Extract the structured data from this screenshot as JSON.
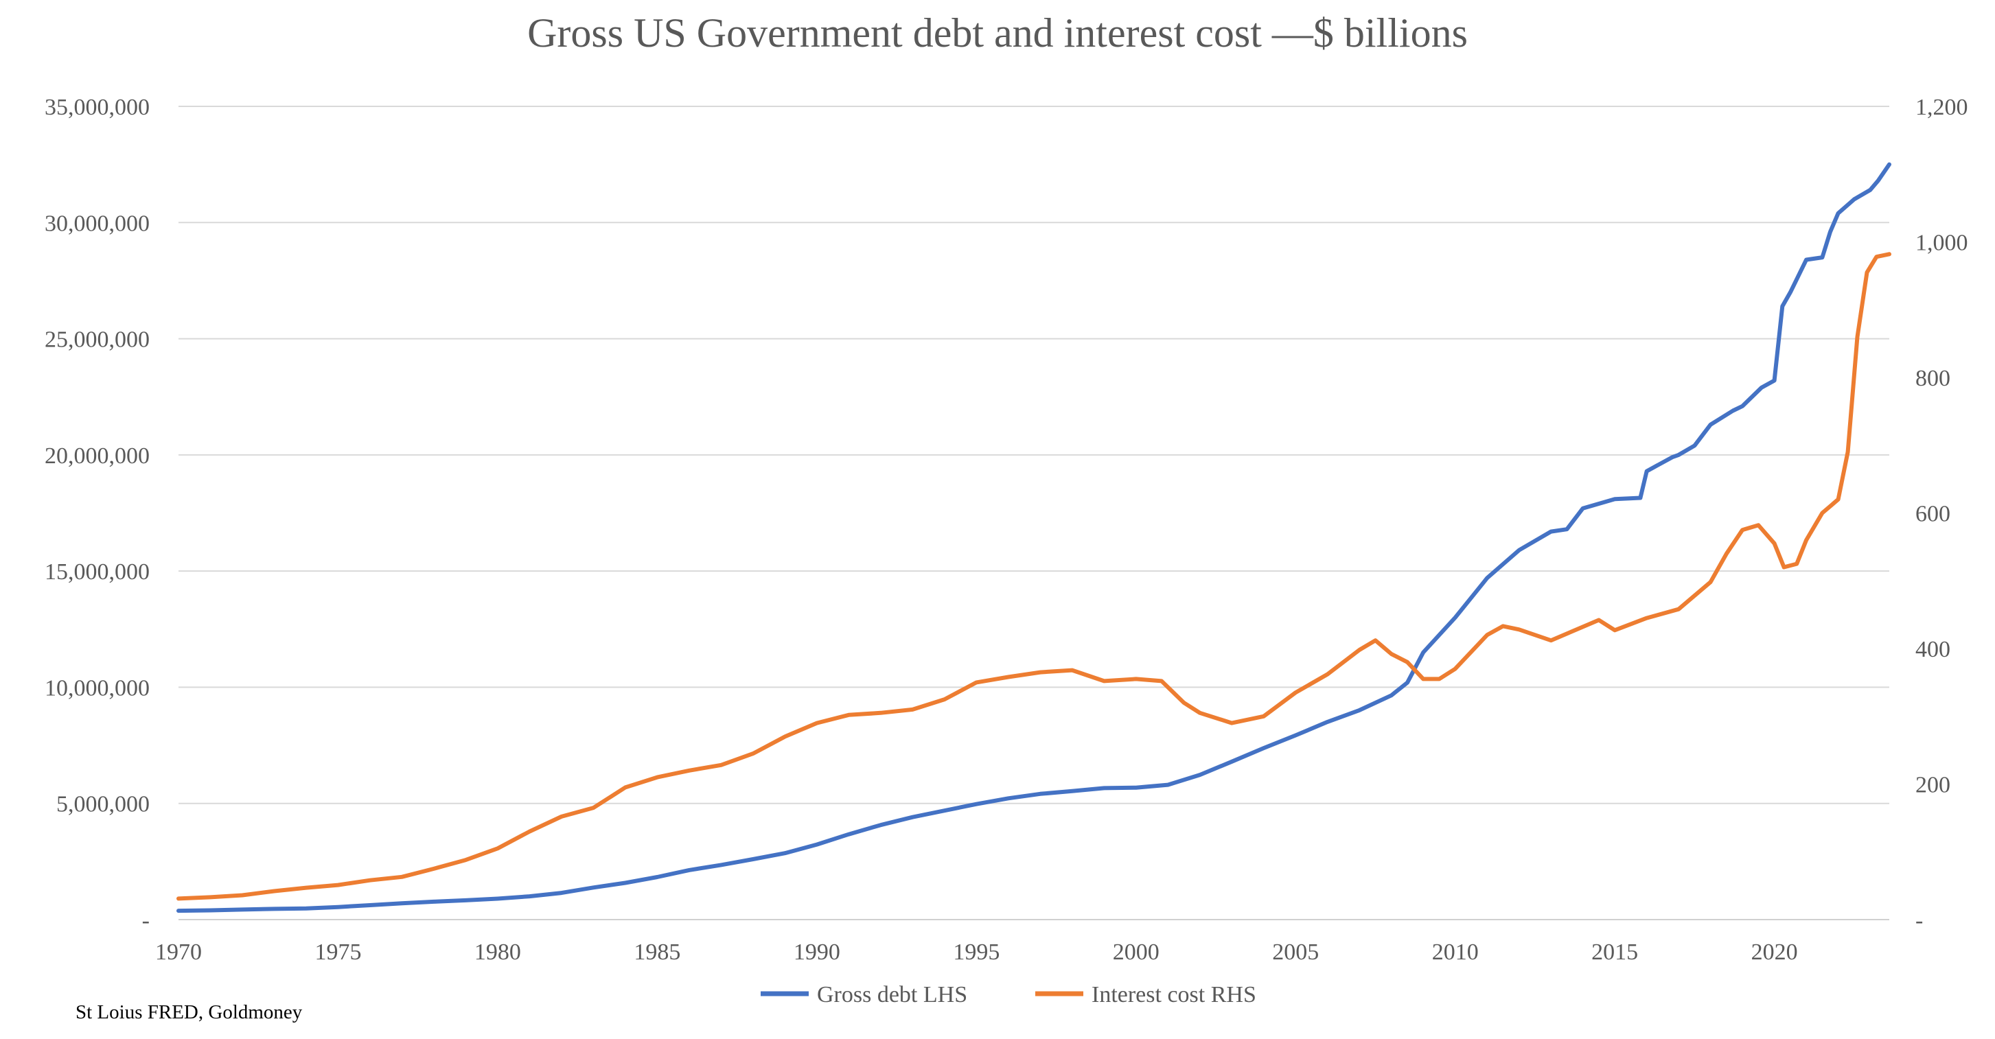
{
  "chart_data": {
    "type": "line",
    "title": "Gross US Government debt and interest cost —$ billions",
    "source": "St Loius FRED, Goldmoney",
    "legend_position": "bottom",
    "grid": true,
    "x_range": [
      1970,
      2023.6
    ],
    "x_ticks": [
      1970,
      1975,
      1980,
      1985,
      1990,
      1995,
      2000,
      2005,
      2010,
      2015,
      2020
    ],
    "y_left": {
      "range": [
        0,
        35000000
      ],
      "ticks": [
        0,
        5000000,
        10000000,
        15000000,
        20000000,
        25000000,
        30000000,
        35000000
      ],
      "tick_labels": [
        "-",
        "5,000,000",
        "10,000,000",
        "15,000,000",
        "20,000,000",
        "25,000,000",
        "30,000,000",
        "35,000,000"
      ]
    },
    "y_right": {
      "range": [
        0,
        1200
      ],
      "ticks": [
        0,
        200,
        400,
        600,
        800,
        1000,
        1200
      ],
      "tick_labels": [
        "-",
        "200",
        "400",
        "600",
        "800",
        "1,000",
        "1,200"
      ]
    },
    "series": [
      {
        "name": "Gross debt LHS",
        "axis": "left",
        "color": "#4472C4",
        "x": [
          1970,
          1971,
          1972,
          1973,
          1974,
          1975,
          1976,
          1977,
          1978,
          1979,
          1980,
          1981,
          1982,
          1983,
          1984,
          1985,
          1986,
          1987,
          1988,
          1989,
          1990,
          1991,
          1992,
          1993,
          1994,
          1995,
          1996,
          1997,
          1998,
          1999,
          2000,
          2001,
          2002,
          2003,
          2004,
          2005,
          2006,
          2007,
          2008,
          2008.5,
          2009,
          2010,
          2011,
          2012,
          2013,
          2013.5,
          2014,
          2015,
          2015.8,
          2016,
          2016.8,
          2017,
          2017.5,
          2018,
          2018.7,
          2019,
          2019.6,
          2020.0,
          2020.25,
          2020.5,
          2021,
          2021.5,
          2021.75,
          2022,
          2022.5,
          2023,
          2023.25,
          2023.6
        ],
        "y": [
          380000,
          400000,
          430000,
          460000,
          480000,
          540000,
          620000,
          700000,
          770000,
          830000,
          900000,
          1000000,
          1150000,
          1380000,
          1580000,
          1830000,
          2130000,
          2350000,
          2600000,
          2860000,
          3230000,
          3670000,
          4070000,
          4410000,
          4690000,
          4970000,
          5220000,
          5410000,
          5530000,
          5660000,
          5680000,
          5800000,
          6230000,
          6800000,
          7380000,
          7930000,
          8510000,
          9010000,
          9650000,
          10200000,
          11500000,
          13000000,
          14700000,
          15900000,
          16700000,
          16800000,
          17700000,
          18100000,
          18150000,
          19300000,
          19900000,
          20000000,
          20400000,
          21300000,
          21900000,
          22100000,
          22900000,
          23200000,
          26400000,
          27000000,
          28400000,
          28500000,
          29600000,
          30400000,
          31000000,
          31400000,
          31800000,
          32500000
        ]
      },
      {
        "name": "Interest cost RHS",
        "axis": "right",
        "color": "#ED7D31",
        "x": [
          1970,
          1971,
          1972,
          1973,
          1974,
          1975,
          1976,
          1977,
          1978,
          1979,
          1980,
          1981,
          1982,
          1983,
          1984,
          1985,
          1986,
          1987,
          1988,
          1989,
          1990,
          1991,
          1992,
          1993,
          1994,
          1995,
          1996,
          1997,
          1998,
          1999,
          2000,
          2000.8,
          2001.5,
          2002,
          2003,
          2004,
          2005,
          2006,
          2007,
          2007.5,
          2008,
          2008.5,
          2009,
          2009.5,
          2010,
          2011,
          2011.5,
          2012,
          2013,
          2014,
          2014.5,
          2015,
          2016,
          2017,
          2018,
          2018.5,
          2019,
          2019.5,
          2020,
          2020.3,
          2020.7,
          2021,
          2021.5,
          2022,
          2022.3,
          2022.6,
          2022.9,
          2023.2,
          2023.6
        ],
        "y": [
          31,
          33,
          36,
          42,
          47,
          51,
          58,
          63,
          75,
          88,
          105,
          130,
          152,
          165,
          195,
          210,
          220,
          228,
          245,
          270,
          290,
          302,
          305,
          310,
          325,
          350,
          358,
          365,
          368,
          352,
          355,
          352,
          320,
          305,
          290,
          300,
          335,
          362,
          398,
          412,
          392,
          380,
          355,
          355,
          370,
          420,
          433,
          428,
          412,
          432,
          442,
          427,
          445,
          458,
          498,
          540,
          575,
          582,
          555,
          520,
          525,
          560,
          600,
          620,
          690,
          860,
          955,
          978,
          982
        ]
      }
    ]
  }
}
